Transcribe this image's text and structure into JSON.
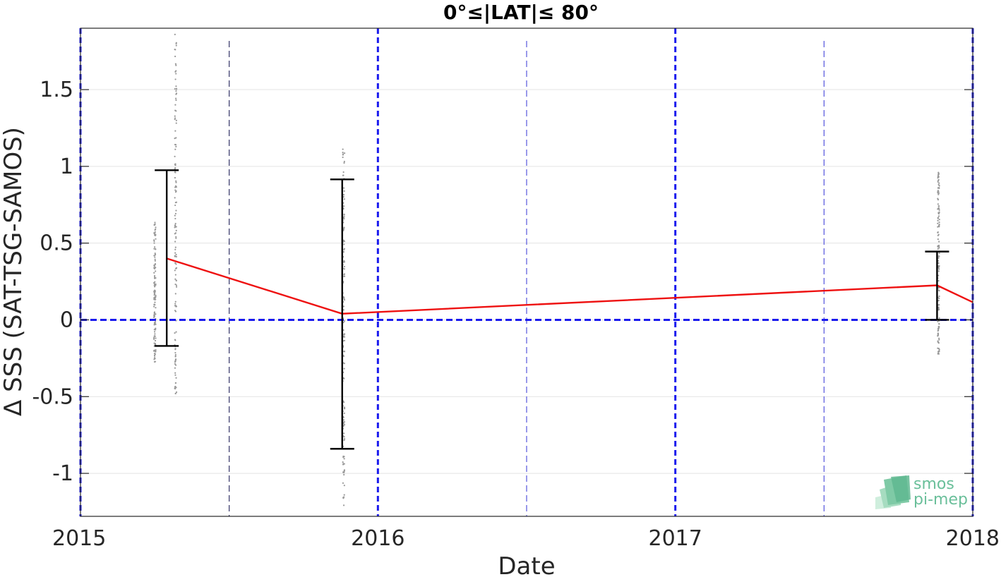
{
  "chart_data": {
    "type": "line",
    "title": "0°≤|LAT|≤ 80°",
    "xlabel": "Date",
    "ylabel": "Δ SSS (SAT-TSG-SAMOS)",
    "xlim": [
      2015.0,
      2018.0
    ],
    "ylim": [
      -1.28,
      1.9
    ],
    "x_ticks": [
      {
        "value": 2015,
        "label": "2015"
      },
      {
        "value": 2016,
        "label": "2016"
      },
      {
        "value": 2017,
        "label": "2017"
      },
      {
        "value": 2018,
        "label": "2018"
      }
    ],
    "y_ticks": [
      {
        "value": 1.5,
        "label": "1.5"
      },
      {
        "value": 1,
        "label": "1"
      },
      {
        "value": 0.5,
        "label": "0.5"
      },
      {
        "value": 0,
        "label": "0"
      },
      {
        "value": -0.5,
        "label": "-0.5"
      },
      {
        "value": -1,
        "label": "-1"
      }
    ],
    "grid": true,
    "series": [
      {
        "kind": "mean",
        "color": "#ee1111",
        "x": [
          2015.29,
          2015.88,
          2017.88,
          2018.0
        ],
        "y": [
          0.4,
          0.04,
          0.225,
          0.115
        ]
      }
    ],
    "error_bars": [
      {
        "x": 2015.29,
        "mean": 0.4,
        "low": -0.17,
        "high": 0.975
      },
      {
        "x": 2015.88,
        "mean": 0.04,
        "low": -0.84,
        "high": 0.915
      },
      {
        "x": 2017.88,
        "mean": 0.225,
        "low": 0.0,
        "high": 0.445
      }
    ],
    "scatter_clusters": [
      {
        "x": 2015.25,
        "y_min": -0.28,
        "y_max": 0.66,
        "color": "#999999"
      },
      {
        "x": 2015.32,
        "y_min": -0.48,
        "y_max": 1.88,
        "color": "#999999"
      },
      {
        "x": 2015.885,
        "y_min": -1.22,
        "y_max": 1.14,
        "color": "#999999"
      },
      {
        "x": 2017.885,
        "y_min": -0.23,
        "y_max": 0.97,
        "color": "#999999"
      }
    ],
    "zero_line": {
      "y": 0,
      "color": "#1a1aee",
      "style": "dashed"
    },
    "year_lines": {
      "x": [
        2015,
        2016,
        2017,
        2018
      ],
      "color": "#1a1aee",
      "style": "dashed-thick"
    },
    "half_year_lines": {
      "x": [
        2015.5,
        2016.5,
        2017.5
      ],
      "color": "#5555dd",
      "style": "dashed-thin"
    }
  },
  "logo": {
    "line1": "smos",
    "line2": "pi-mep",
    "color": "#6abf9a"
  }
}
